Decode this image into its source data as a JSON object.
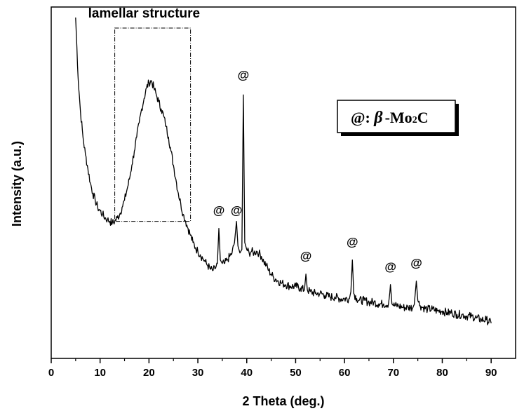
{
  "chart_data": {
    "type": "line",
    "title": "",
    "xlabel": "2 Theta (deg.)",
    "ylabel": "Intensity (a.u.)",
    "xlim": [
      0,
      95
    ],
    "ylim": [
      0,
      100
    ],
    "xticks": [
      0,
      10,
      20,
      30,
      40,
      50,
      60,
      70,
      80,
      90
    ],
    "yticks_shown": false,
    "grid": false,
    "line_color": "#000000",
    "series": [
      {
        "name": "",
        "points": [
          [
            5.0,
            97
          ],
          [
            5.5,
            80
          ],
          [
            6.0,
            70
          ],
          [
            6.5,
            63
          ],
          [
            7.0,
            58
          ],
          [
            7.5,
            54
          ],
          [
            8.0,
            50
          ],
          [
            8.5,
            47
          ],
          [
            9.0,
            45
          ],
          [
            9.5,
            43
          ],
          [
            10.0,
            42
          ],
          [
            10.5,
            41
          ],
          [
            11.0,
            40
          ],
          [
            11.5,
            39.5
          ],
          [
            12.0,
            39
          ],
          [
            12.5,
            38.5
          ],
          [
            13.0,
            39
          ],
          [
            13.5,
            40
          ],
          [
            14.0,
            41
          ],
          [
            14.5,
            43
          ],
          [
            15.0,
            45
          ],
          [
            15.5,
            48
          ],
          [
            16.0,
            51
          ],
          [
            16.5,
            55
          ],
          [
            17.0,
            59
          ],
          [
            17.5,
            63
          ],
          [
            18.0,
            67
          ],
          [
            18.5,
            71
          ],
          [
            19.0,
            74
          ],
          [
            19.5,
            77
          ],
          [
            20.0,
            78.5
          ],
          [
            20.5,
            79
          ],
          [
            21.0,
            77
          ],
          [
            21.5,
            75
          ],
          [
            22.0,
            73
          ],
          [
            22.5,
            71
          ],
          [
            23.0,
            69
          ],
          [
            23.5,
            66
          ],
          [
            24.0,
            63
          ],
          [
            24.5,
            59
          ],
          [
            25.0,
            55
          ],
          [
            25.5,
            51
          ],
          [
            26.0,
            47
          ],
          [
            26.5,
            44
          ],
          [
            27.0,
            41
          ],
          [
            27.5,
            39
          ],
          [
            28.0,
            37
          ],
          [
            28.5,
            35
          ],
          [
            29.0,
            33
          ],
          [
            29.5,
            31.5
          ],
          [
            30.0,
            30.5
          ],
          [
            30.5,
            29.5
          ],
          [
            31.0,
            28.5
          ],
          [
            31.5,
            27.5
          ],
          [
            32.0,
            26.5
          ],
          [
            32.5,
            25.5
          ],
          [
            33.0,
            25
          ],
          [
            33.5,
            25.5
          ],
          [
            34.0,
            27
          ],
          [
            34.3,
            37
          ],
          [
            34.6,
            28
          ],
          [
            35.0,
            27
          ],
          [
            35.5,
            27
          ],
          [
            36.0,
            28
          ],
          [
            36.5,
            29
          ],
          [
            37.0,
            30
          ],
          [
            37.5,
            33
          ],
          [
            37.9,
            39
          ],
          [
            38.2,
            32
          ],
          [
            38.6,
            30
          ],
          [
            39.0,
            31
          ],
          [
            39.3,
            75
          ],
          [
            39.6,
            33
          ],
          [
            40.0,
            31
          ],
          [
            40.5,
            30
          ],
          [
            41.0,
            30.5
          ],
          [
            41.5,
            30
          ],
          [
            42.0,
            30.5
          ],
          [
            42.5,
            30
          ],
          [
            43.0,
            29
          ],
          [
            43.5,
            27.5
          ],
          [
            44.0,
            26.5
          ],
          [
            44.5,
            25
          ],
          [
            45.0,
            24
          ],
          [
            45.5,
            23
          ],
          [
            46.0,
            22.5
          ],
          [
            47.0,
            21.5
          ],
          [
            48.0,
            21
          ],
          [
            49.0,
            20.5
          ],
          [
            50.0,
            20.5
          ],
          [
            51.0,
            20
          ],
          [
            51.8,
            19.5
          ],
          [
            52.1,
            24
          ],
          [
            52.4,
            19.5
          ],
          [
            53.0,
            19
          ],
          [
            54.0,
            18.5
          ],
          [
            55.0,
            18.5
          ],
          [
            56.0,
            18
          ],
          [
            57.0,
            17.5
          ],
          [
            58.0,
            17.5
          ],
          [
            59.0,
            17
          ],
          [
            60.0,
            17
          ],
          [
            61.0,
            17
          ],
          [
            61.3,
            19
          ],
          [
            61.6,
            28
          ],
          [
            61.9,
            18.5
          ],
          [
            62.5,
            17
          ],
          [
            63.0,
            16.5
          ],
          [
            64.0,
            16.5
          ],
          [
            65.0,
            16
          ],
          [
            66.0,
            16
          ],
          [
            67.0,
            15.5
          ],
          [
            68.0,
            15.5
          ],
          [
            69.0,
            15.5
          ],
          [
            69.4,
            21
          ],
          [
            69.7,
            15.5
          ],
          [
            70.0,
            15
          ],
          [
            71.0,
            15
          ],
          [
            72.0,
            14.5
          ],
          [
            73.0,
            14.5
          ],
          [
            74.0,
            14.5
          ],
          [
            74.4,
            17.5
          ],
          [
            74.7,
            22
          ],
          [
            75.0,
            16.5
          ],
          [
            75.5,
            15
          ],
          [
            76.0,
            14.5
          ],
          [
            77.0,
            14
          ],
          [
            78.0,
            14
          ],
          [
            79.0,
            13.5
          ],
          [
            80.0,
            13.5
          ],
          [
            81.0,
            13
          ],
          [
            82.0,
            13
          ],
          [
            83.0,
            12.5
          ],
          [
            84.0,
            12.5
          ],
          [
            85.0,
            12
          ],
          [
            86.0,
            12
          ],
          [
            87.0,
            11.5
          ],
          [
            88.0,
            11
          ],
          [
            89.0,
            11
          ],
          [
            90.0,
            10
          ]
        ]
      }
    ],
    "region_box": {
      "x": [
        13,
        28.5
      ],
      "y": [
        39,
        94
      ]
    },
    "annotations": [
      {
        "text": "lamellar structure",
        "x": 19,
        "y": 97
      },
      {
        "text": "@",
        "x": 34.3,
        "y": 41
      },
      {
        "text": "@",
        "x": 37.9,
        "y": 41
      },
      {
        "text": "@",
        "x": 39.3,
        "y": 79.5
      },
      {
        "text": "@",
        "x": 52.1,
        "y": 28
      },
      {
        "text": "@",
        "x": 61.6,
        "y": 32
      },
      {
        "text": "@",
        "x": 69.4,
        "y": 25
      },
      {
        "text": "@",
        "x": 74.7,
        "y": 26
      }
    ],
    "legend": {
      "placement": "top-right",
      "prefix": "@: ",
      "symbol": "β",
      "suffix": "-Mo",
      "subscript": "2",
      "tail": "C"
    }
  }
}
